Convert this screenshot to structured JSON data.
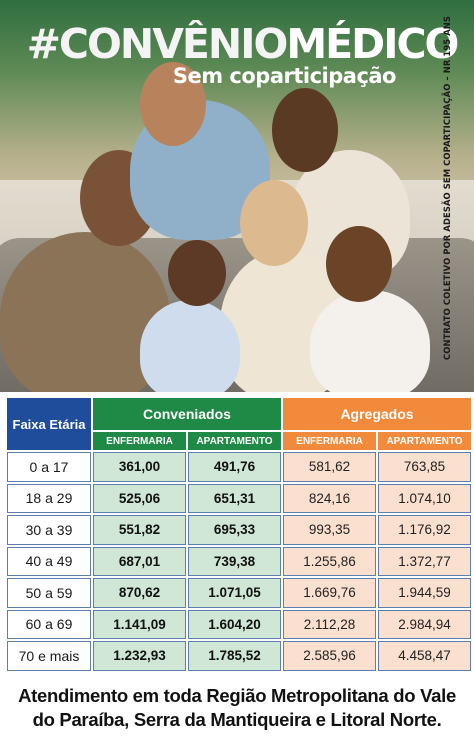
{
  "header": {
    "title_part1": "#CONVÊNIO",
    "title_part2": "MÉDICO",
    "subtitle": "Sem coparticipação",
    "side_note": "CONTRATO COLETIVO POR ADESÃO SEM COPARTICIPAÇÃO – NR 195 ANS"
  },
  "table": {
    "age_header": "Faixa Etária",
    "groups": [
      {
        "label": "Conveniados",
        "color": "#1e8a45"
      },
      {
        "label": "Agregados",
        "color": "#f28a3c"
      }
    ],
    "subheaders": [
      "ENFERMARIA",
      "APARTAMENTO",
      "ENFERMARIA",
      "APARTAMENTO"
    ],
    "rows": [
      {
        "age": "0 a 17",
        "conv_enf": "361,00",
        "conv_apt": "491,76",
        "agr_enf": "581,62",
        "agr_apt": "763,85"
      },
      {
        "age": "18 a 29",
        "conv_enf": "525,06",
        "conv_apt": "651,31",
        "agr_enf": "824,16",
        "agr_apt": "1.074,10"
      },
      {
        "age": "30 a 39",
        "conv_enf": "551,82",
        "conv_apt": "695,33",
        "agr_enf": "993,35",
        "agr_apt": "1.176,92"
      },
      {
        "age": "40 a 49",
        "conv_enf": "687,01",
        "conv_apt": "739,38",
        "agr_enf": "1.255,86",
        "agr_apt": "1.372,77"
      },
      {
        "age": "50 a 59",
        "conv_enf": "870,62",
        "conv_apt": "1.071,05",
        "agr_enf": "1.669,76",
        "agr_apt": "1.944,59"
      },
      {
        "age": "60 a 69",
        "conv_enf": "1.141,09",
        "conv_apt": "1.604,20",
        "agr_enf": "2.112,28",
        "agr_apt": "2.984,94"
      },
      {
        "age": "70 e mais",
        "conv_enf": "1.232,93",
        "conv_apt": "1.785,52",
        "agr_enf": "2.585,96",
        "agr_apt": "4.458,47"
      }
    ]
  },
  "footer": {
    "line1": "Atendimento em toda Região Metropolitana do Vale",
    "line2": "do Paraíba, Serra da Mantiqueira e Litoral Norte."
  }
}
